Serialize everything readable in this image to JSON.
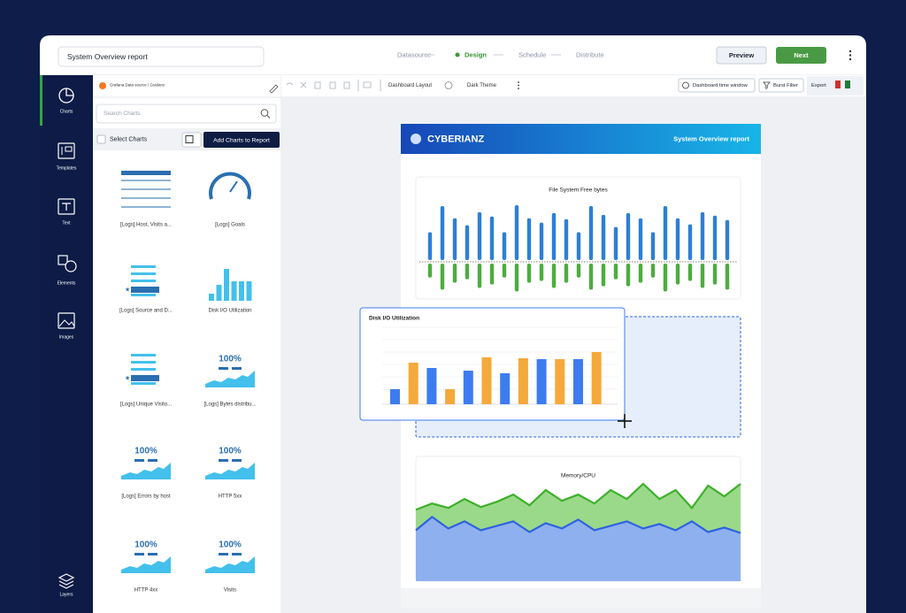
{
  "header": {
    "report_name": "System Overview report",
    "steps": [
      "Datasource",
      "Design",
      "Schedule",
      "Distribute"
    ],
    "preview": "Preview",
    "next": "Next"
  },
  "sidebar": [
    "Charts",
    "Templates",
    "Text",
    "Elements",
    "Images",
    "Layers"
  ],
  "panel": {
    "source": "Grafana Data source / Guidanz",
    "search": "Search Charts",
    "select": "Select Charts",
    "add": "Add Charts to Report",
    "charts": [
      {
        "label": "[Logs] Host, Visits a...",
        "kind": "table"
      },
      {
        "label": "[Logs] Goals",
        "kind": "gauge"
      },
      {
        "label": "[Logs] Source and D...",
        "kind": "list"
      },
      {
        "label": "Disk I/O Utilization",
        "kind": "bars"
      },
      {
        "label": "[Logs] Unique Visito...",
        "kind": "list"
      },
      {
        "label": "[Logs] Bytes distribu...",
        "kind": "kpi",
        "kpi": "100%"
      },
      {
        "label": "[Logs] Errors by host",
        "kind": "kpi",
        "kpi": "100%"
      },
      {
        "label": "HTTP 5xx",
        "kind": "kpi",
        "kpi": "100%"
      },
      {
        "label": "HTTP 4xx",
        "kind": "kpi",
        "kpi": "100%"
      },
      {
        "label": "Visits",
        "kind": "kpi",
        "kpi": "100%"
      }
    ]
  },
  "toolbar": {
    "layout": "Dashboard Layout",
    "theme": "Dark Theme",
    "time": "Dashboard time window",
    "filter": "Burst Filter",
    "export": "Export"
  },
  "report": {
    "brand": "CYBERIANZ",
    "title": "System Overview report",
    "file_system": {
      "title": "File System Free bytes",
      "up_color": "#2d7fd6",
      "down_color": "#4cad3e",
      "up": [
        32,
        62,
        48,
        40,
        55,
        50,
        32,
        63,
        48,
        43,
        54,
        47,
        32,
        62,
        52,
        38,
        54,
        48,
        32,
        62,
        48,
        41,
        55,
        51,
        46
      ],
      "down": [
        16,
        30,
        22,
        18,
        28,
        24,
        16,
        32,
        22,
        20,
        28,
        22,
        16,
        30,
        26,
        18,
        26,
        22,
        16,
        32,
        24,
        20,
        28,
        24,
        30
      ]
    },
    "disk_io": {
      "title": "Disk I/O Utilization",
      "colors": [
        "#3d7cf0",
        "#f5a93a"
      ],
      "values": [
        17,
        47,
        41,
        17,
        38,
        53,
        35,
        52,
        51,
        51,
        51,
        59
      ]
    },
    "memory_cpu": {
      "title": "Memory/CPU",
      "upper_color": "#3cb02a",
      "lower_color": "#2e62e0",
      "upper": [
        80,
        87,
        82,
        92,
        83,
        89,
        97,
        85,
        102,
        90,
        97,
        87,
        102,
        92,
        109,
        92,
        102,
        82,
        107,
        95,
        109
      ],
      "lower": [
        57,
        72,
        59,
        67,
        57,
        62,
        67,
        55,
        65,
        59,
        69,
        57,
        62,
        67,
        59,
        64,
        57,
        67,
        55,
        60,
        54
      ]
    }
  }
}
